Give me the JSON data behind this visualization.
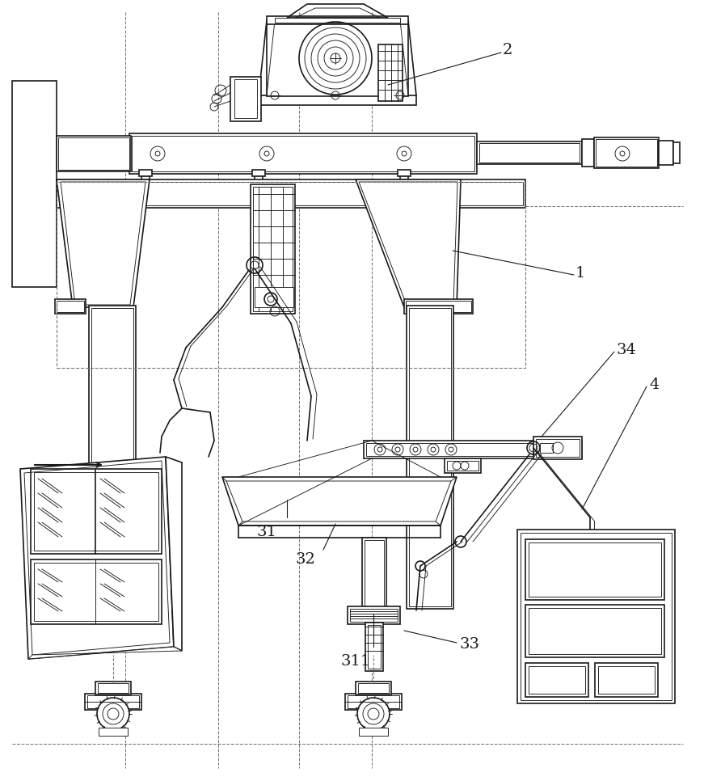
{
  "bg_color": "#ffffff",
  "line_color": "#1a1a1a",
  "lw": 1.2,
  "tlw": 0.65,
  "dlw": 0.75
}
